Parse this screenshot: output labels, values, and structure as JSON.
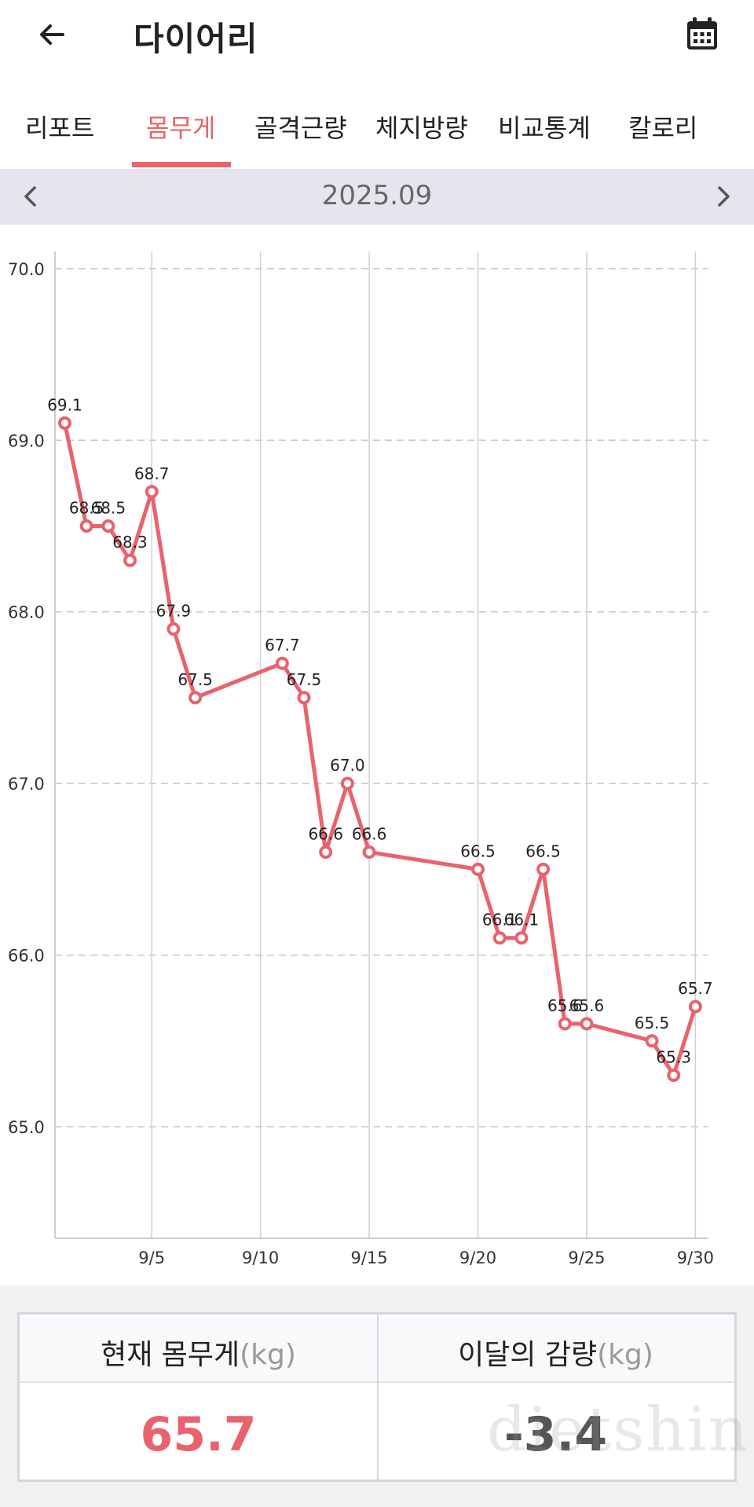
{
  "header": {
    "title": "다이어리",
    "back_icon": "arrow-left-icon",
    "calendar_icon": "calendar-icon"
  },
  "tabs": [
    {
      "label": "리포트",
      "active": false
    },
    {
      "label": "몸무게",
      "active": true
    },
    {
      "label": "골격근량",
      "active": false
    },
    {
      "label": "체지방량",
      "active": false
    },
    {
      "label": "비교통계",
      "active": false
    },
    {
      "label": "칼로리",
      "active": false
    }
  ],
  "month_nav": {
    "label": "2025.09",
    "prev_icon": "chevron-left-icon",
    "next_icon": "chevron-right-icon"
  },
  "chart_data": {
    "type": "line",
    "title": "",
    "xlabel": "",
    "ylabel": "",
    "x_ticks": [
      "9/5",
      "9/10",
      "9/15",
      "9/20",
      "9/25",
      "9/30"
    ],
    "y_ticks": [
      "65.0",
      "66.0",
      "67.0",
      "68.0",
      "69.0",
      "70.0"
    ],
    "ylim": [
      64.35,
      70.1
    ],
    "xlim": [
      0.55,
      30.6
    ],
    "grid": true,
    "series": [
      {
        "color": "#e8636d",
        "points": [
          {
            "day": 1,
            "value": 69.1,
            "label": "69.1"
          },
          {
            "day": 2,
            "value": 68.5,
            "label": "68.5"
          },
          {
            "day": 3,
            "value": 68.5,
            "label": "68.5"
          },
          {
            "day": 4,
            "value": 68.3,
            "label": "68.3"
          },
          {
            "day": 5,
            "value": 68.7,
            "label": "68.7"
          },
          {
            "day": 6,
            "value": 67.9,
            "label": "67.9"
          },
          {
            "day": 7,
            "value": 67.5,
            "label": "67.5"
          },
          {
            "day": 11,
            "value": 67.7,
            "label": "67.7"
          },
          {
            "day": 12,
            "value": 67.5,
            "label": "67.5"
          },
          {
            "day": 13,
            "value": 66.6,
            "label": "66.6"
          },
          {
            "day": 14,
            "value": 67.0,
            "label": "67.0"
          },
          {
            "day": 15,
            "value": 66.6,
            "label": "66.6"
          },
          {
            "day": 20,
            "value": 66.5,
            "label": "66.5"
          },
          {
            "day": 21,
            "value": 66.1,
            "label": "66.1"
          },
          {
            "day": 22,
            "value": 66.1,
            "label": "66.1"
          },
          {
            "day": 23,
            "value": 66.5,
            "label": "66.5"
          },
          {
            "day": 24,
            "value": 65.6,
            "label": "65.6"
          },
          {
            "day": 25,
            "value": 65.6,
            "label": "65.6"
          },
          {
            "day": 28,
            "value": 65.5,
            "label": "65.5"
          },
          {
            "day": 29,
            "value": 65.3,
            "label": "65.3"
          },
          {
            "day": 30,
            "value": 65.7,
            "label": "65.7"
          }
        ]
      }
    ]
  },
  "summary": {
    "current_label": "현재 몸무게",
    "current_unit": "(kg)",
    "current_value": "65.7",
    "change_label": "이달의 감량",
    "change_unit": "(kg)",
    "change_value": "-3.4"
  },
  "watermark": "dietshin.com"
}
